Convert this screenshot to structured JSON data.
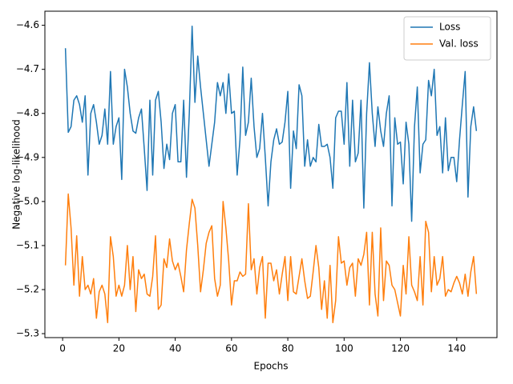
{
  "chart_data": {
    "type": "line",
    "xlabel": "Epochs",
    "ylabel": "Negative log-likelihood",
    "x": [
      1,
      2,
      3,
      4,
      5,
      6,
      7,
      8,
      9,
      10,
      11,
      12,
      13,
      14,
      15,
      16,
      17,
      18,
      19,
      20,
      21,
      22,
      23,
      24,
      25,
      26,
      27,
      28,
      29,
      30,
      31,
      32,
      33,
      34,
      35,
      36,
      37,
      38,
      39,
      40,
      41,
      42,
      43,
      44,
      45,
      46,
      47,
      48,
      49,
      50,
      51,
      52,
      53,
      54,
      55,
      56,
      57,
      58,
      59,
      60,
      61,
      62,
      63,
      64,
      65,
      66,
      67,
      68,
      69,
      70,
      71,
      72,
      73,
      74,
      75,
      76,
      77,
      78,
      79,
      80,
      81,
      82,
      83,
      84,
      85,
      86,
      87,
      88,
      89,
      90,
      91,
      92,
      93,
      94,
      95,
      96,
      97,
      98,
      99,
      100,
      101,
      102,
      103,
      104,
      105,
      106,
      107,
      108,
      109,
      110,
      111,
      112,
      113,
      114,
      115,
      116,
      117,
      118,
      119,
      120,
      121,
      122,
      123,
      124,
      125,
      126,
      127,
      128,
      129,
      130,
      131,
      132,
      133,
      134,
      135,
      136,
      137,
      138,
      139,
      140,
      141,
      142,
      143,
      144,
      145,
      146,
      147
    ],
    "series": [
      {
        "name": "Loss",
        "color": "#1f77b4",
        "values": [
          -4.652,
          -4.843,
          -4.83,
          -4.77,
          -4.76,
          -4.78,
          -4.82,
          -4.76,
          -4.94,
          -4.8,
          -4.78,
          -4.82,
          -4.87,
          -4.85,
          -4.79,
          -4.87,
          -4.705,
          -4.87,
          -4.83,
          -4.81,
          -4.95,
          -4.7,
          -4.74,
          -4.8,
          -4.84,
          -4.845,
          -4.81,
          -4.79,
          -4.88,
          -4.975,
          -4.77,
          -4.94,
          -4.77,
          -4.75,
          -4.82,
          -4.925,
          -4.87,
          -4.905,
          -4.8,
          -4.78,
          -4.91,
          -4.91,
          -4.77,
          -4.945,
          -4.8,
          -4.602,
          -4.775,
          -4.67,
          -4.74,
          -4.8,
          -4.86,
          -4.92,
          -4.87,
          -4.82,
          -4.73,
          -4.76,
          -4.73,
          -4.8,
          -4.71,
          -4.8,
          -4.795,
          -4.94,
          -4.86,
          -4.695,
          -4.85,
          -4.82,
          -4.72,
          -4.83,
          -4.9,
          -4.88,
          -4.8,
          -4.9,
          -5.01,
          -4.91,
          -4.86,
          -4.835,
          -4.87,
          -4.865,
          -4.82,
          -4.75,
          -4.97,
          -4.84,
          -4.88,
          -4.735,
          -4.76,
          -4.92,
          -4.86,
          -4.92,
          -4.9,
          -4.91,
          -4.825,
          -4.875,
          -4.875,
          -4.87,
          -4.9,
          -4.97,
          -4.81,
          -4.795,
          -4.795,
          -4.87,
          -4.73,
          -4.92,
          -4.77,
          -4.91,
          -4.89,
          -4.77,
          -5.015,
          -4.8,
          -4.685,
          -4.8,
          -4.875,
          -4.785,
          -4.84,
          -4.875,
          -4.8,
          -4.76,
          -5.01,
          -4.81,
          -4.87,
          -4.865,
          -4.96,
          -4.82,
          -4.87,
          -5.045,
          -4.83,
          -4.74,
          -4.935,
          -4.87,
          -4.86,
          -4.725,
          -4.76,
          -4.7,
          -4.85,
          -4.83,
          -4.935,
          -4.81,
          -4.93,
          -4.9,
          -4.9,
          -4.955,
          -4.86,
          -4.78,
          -4.705,
          -4.99,
          -4.83,
          -4.785,
          -4.84
        ]
      },
      {
        "name": "Val. loss",
        "color": "#ff7f0e",
        "values": [
          -5.145,
          -4.983,
          -5.06,
          -5.19,
          -5.078,
          -5.215,
          -5.125,
          -5.2,
          -5.19,
          -5.21,
          -5.175,
          -5.265,
          -5.205,
          -5.19,
          -5.21,
          -5.275,
          -5.08,
          -5.125,
          -5.215,
          -5.19,
          -5.215,
          -5.19,
          -5.1,
          -5.2,
          -5.125,
          -5.25,
          -5.155,
          -5.175,
          -5.165,
          -5.21,
          -5.215,
          -5.17,
          -5.078,
          -5.245,
          -5.235,
          -5.13,
          -5.15,
          -5.085,
          -5.135,
          -5.155,
          -5.14,
          -5.17,
          -5.205,
          -5.11,
          -5.05,
          -4.995,
          -5.015,
          -5.1,
          -5.205,
          -5.155,
          -5.095,
          -5.07,
          -5.055,
          -5.175,
          -5.215,
          -5.19,
          -5.0,
          -5.06,
          -5.135,
          -5.235,
          -5.18,
          -5.18,
          -5.16,
          -5.17,
          -5.165,
          -5.005,
          -5.155,
          -5.13,
          -5.21,
          -5.15,
          -5.125,
          -5.265,
          -5.14,
          -5.14,
          -5.18,
          -5.155,
          -5.21,
          -5.165,
          -5.125,
          -5.225,
          -5.125,
          -5.205,
          -5.21,
          -5.17,
          -5.13,
          -5.18,
          -5.22,
          -5.215,
          -5.16,
          -5.1,
          -5.15,
          -5.245,
          -5.18,
          -5.265,
          -5.145,
          -5.275,
          -5.225,
          -5.08,
          -5.14,
          -5.135,
          -5.19,
          -5.15,
          -5.14,
          -5.215,
          -5.13,
          -5.145,
          -5.12,
          -5.07,
          -5.235,
          -5.07,
          -5.21,
          -5.26,
          -5.06,
          -5.225,
          -5.135,
          -5.145,
          -5.19,
          -5.2,
          -5.23,
          -5.26,
          -5.145,
          -5.21,
          -5.08,
          -5.19,
          -5.205,
          -5.225,
          -5.125,
          -5.235,
          -5.045,
          -5.07,
          -5.205,
          -5.125,
          -5.19,
          -5.175,
          -5.125,
          -5.215,
          -5.2,
          -5.205,
          -5.185,
          -5.17,
          -5.185,
          -5.21,
          -5.165,
          -5.215,
          -5.16,
          -5.125,
          -5.21
        ]
      }
    ],
    "xlim": [
      -6.3,
      154.3
    ],
    "xticks": [
      0,
      20,
      40,
      60,
      80,
      100,
      120,
      140
    ],
    "ylim": [
      -5.309,
      -4.568
    ],
    "yticks": [
      {
        "value": -5.3,
        "label": "−5.3"
      },
      {
        "value": -5.2,
        "label": "−5.2"
      },
      {
        "value": -5.1,
        "label": "−5.1"
      },
      {
        "value": -5.0,
        "label": "−5.0"
      },
      {
        "value": -4.9,
        "label": "−4.9"
      },
      {
        "value": -4.8,
        "label": "−4.8"
      },
      {
        "value": -4.7,
        "label": "−4.7"
      },
      {
        "value": -4.6,
        "label": "−4.6"
      }
    ],
    "legend": "upper right"
  }
}
